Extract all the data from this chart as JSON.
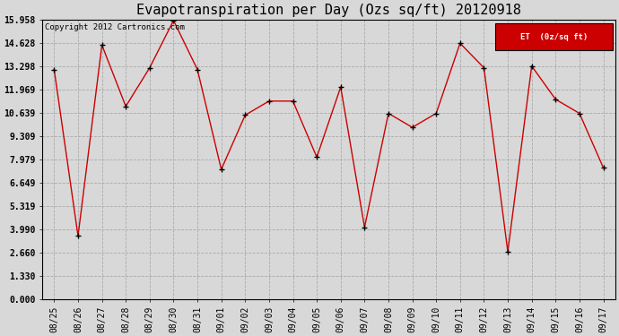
{
  "title": "Evapotranspiration per Day (Ozs sq/ft) 20120918",
  "copyright": "Copyright 2012 Cartronics.com",
  "legend_label": "ET  (0z/sq ft)",
  "x_labels": [
    "08/25",
    "08/26",
    "08/27",
    "08/28",
    "08/29",
    "08/30",
    "08/31",
    "09/01",
    "09/02",
    "09/03",
    "09/04",
    "09/05",
    "09/06",
    "09/07",
    "09/08",
    "09/09",
    "09/10",
    "09/11",
    "09/12",
    "09/13",
    "09/14",
    "09/15",
    "09/16",
    "09/17"
  ],
  "y_values": [
    13.1,
    3.6,
    14.5,
    11.0,
    13.2,
    15.9,
    13.1,
    7.4,
    10.5,
    11.3,
    11.3,
    8.1,
    12.1,
    4.1,
    10.6,
    9.8,
    10.6,
    14.6,
    13.2,
    2.7,
    13.3,
    11.4,
    10.6,
    7.5
  ],
  "y_ticks": [
    0.0,
    1.33,
    2.66,
    3.99,
    5.319,
    6.649,
    7.979,
    9.309,
    10.639,
    11.969,
    13.298,
    14.628,
    15.958
  ],
  "y_tick_labels": [
    "0.000",
    "1.330",
    "2.660",
    "3.990",
    "5.319",
    "6.649",
    "7.979",
    "9.309",
    "10.639",
    "11.969",
    "13.298",
    "14.628",
    "15.958"
  ],
  "ylim": [
    0.0,
    15.958
  ],
  "line_color": "#cc0000",
  "marker_color": "#000000",
  "bg_color": "#d8d8d8",
  "plot_bg_color": "#d8d8d8",
  "grid_color": "#aaaaaa",
  "title_fontsize": 11,
  "copyright_fontsize": 6.5,
  "tick_fontsize": 7,
  "legend_bg_color": "#cc0000",
  "legend_text_color": "#ffffff"
}
